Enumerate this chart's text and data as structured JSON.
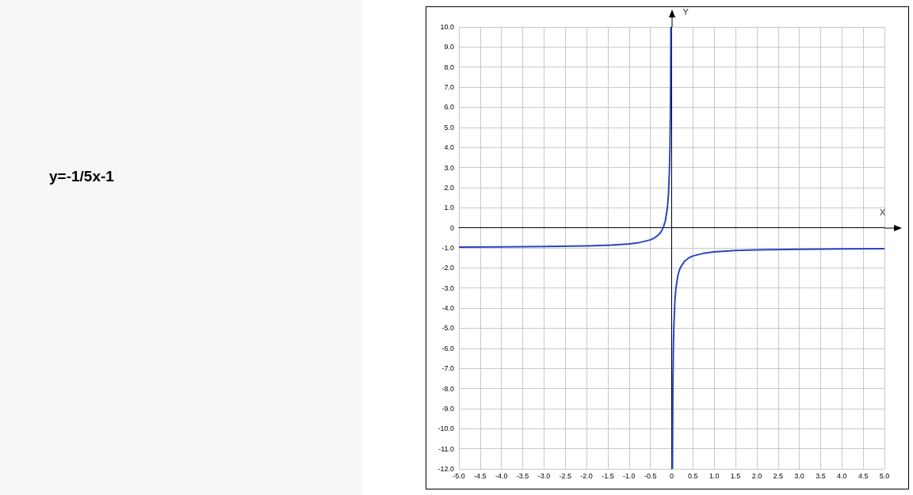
{
  "chart_data": {
    "type": "line",
    "title": "y=-1/5x-1",
    "xlabel": "X",
    "ylabel": "Y",
    "grid": true,
    "marker": "none",
    "xlim": [
      -5,
      5
    ],
    "ylim": [
      -12,
      10
    ],
    "xticks": [
      {
        "value": -5,
        "label": "-5.0"
      },
      {
        "value": -4.5,
        "label": "-4.5"
      },
      {
        "value": -4,
        "label": "-4.0"
      },
      {
        "value": -3.5,
        "label": "-3.5"
      },
      {
        "value": -3,
        "label": "-3.0"
      },
      {
        "value": -2.5,
        "label": "-2.5"
      },
      {
        "value": -2,
        "label": "-2.0"
      },
      {
        "value": -1.5,
        "label": "-1.5"
      },
      {
        "value": -1,
        "label": "-1.0"
      },
      {
        "value": -0.5,
        "label": "-0.5"
      },
      0,
      {
        "value": 0.5,
        "label": "0.5"
      },
      {
        "value": 1,
        "label": "1.0"
      },
      {
        "value": 1.5,
        "label": "1.5"
      },
      {
        "value": 2,
        "label": "2.0"
      },
      {
        "value": 2.5,
        "label": "2.5"
      },
      {
        "value": 3,
        "label": "3.0"
      },
      {
        "value": 3.5,
        "label": "3.5"
      },
      {
        "value": 4,
        "label": "4.0"
      },
      {
        "value": 4.5,
        "label": "4.5"
      },
      {
        "value": 5,
        "label": "5.0"
      }
    ],
    "yticks": [
      {
        "value": -12,
        "label": "-12.0"
      },
      {
        "value": -11,
        "label": "-11.0"
      },
      {
        "value": -10,
        "label": "-10.0"
      },
      {
        "value": -9,
        "label": "-9.0"
      },
      {
        "value": -8,
        "label": "-8.0"
      },
      {
        "value": -7,
        "label": "-7.0"
      },
      {
        "value": -6,
        "label": "-6.0"
      },
      {
        "value": -5,
        "label": "-5.0"
      },
      {
        "value": -4,
        "label": "-4.0"
      },
      {
        "value": -3,
        "label": "-3.0"
      },
      {
        "value": -2,
        "label": "-2.0"
      },
      {
        "value": -1,
        "label": "-1.0"
      },
      0,
      {
        "value": 1,
        "label": "1.0"
      },
      {
        "value": 2,
        "label": "2.0"
      },
      {
        "value": 3,
        "label": "3.0"
      },
      {
        "value": 4,
        "label": "4.0"
      },
      {
        "value": 5,
        "label": "5.0"
      },
      {
        "value": 6,
        "label": "6.0"
      },
      {
        "value": 7,
        "label": "7.0"
      },
      {
        "value": 8,
        "label": "8.0"
      },
      {
        "value": 9,
        "label": "9.0"
      },
      {
        "value": 10,
        "label": "10.0"
      }
    ],
    "series": [
      {
        "color": "#2b44c4",
        "x": [
          -5,
          -4,
          -3,
          -2,
          -1.5,
          -1,
          -0.75,
          -0.5,
          -0.4,
          -0.3,
          -0.25,
          -0.2,
          -0.15,
          -0.1,
          -0.075,
          -0.05,
          -0.04,
          -0.03,
          -0.025,
          -0.02,
          -0.018,
          0,
          0.018,
          0.02,
          0.025,
          0.03,
          0.04,
          0.05,
          0.075,
          0.1,
          0.15,
          0.2,
          0.3,
          0.4,
          0.5,
          0.75,
          1,
          1.5,
          2,
          3,
          4,
          5
        ],
        "values": [
          -0.96,
          -0.95,
          -0.93,
          -0.9,
          -0.87,
          -0.8,
          -0.73,
          -0.6,
          -0.5,
          -0.33,
          -0.2,
          0,
          0.33,
          1,
          1.67,
          3,
          4,
          5.67,
          7,
          9,
          10,
          null,
          -12,
          -11,
          -9,
          -7.67,
          -6,
          -5,
          -3.67,
          -3,
          -2.33,
          -2,
          -1.67,
          -1.5,
          -1.4,
          -1.27,
          -1.2,
          -1.13,
          -1.1,
          -1.07,
          -1.05,
          -1.04
        ]
      }
    ]
  }
}
